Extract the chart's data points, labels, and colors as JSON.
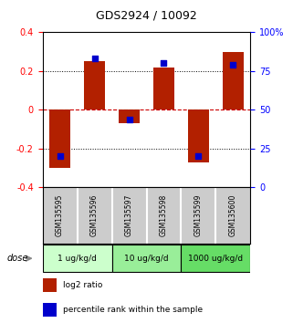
{
  "title": "GDS2924 / 10092",
  "samples": [
    "GSM135595",
    "GSM135596",
    "GSM135597",
    "GSM135598",
    "GSM135599",
    "GSM135600"
  ],
  "log2_ratio": [
    -0.3,
    0.25,
    -0.07,
    0.22,
    -0.27,
    0.3
  ],
  "percentile": [
    20,
    83,
    44,
    80,
    20,
    79
  ],
  "bar_color": "#b22000",
  "dot_color": "#0000cc",
  "ylim_left": [
    -0.4,
    0.4
  ],
  "ylim_right": [
    0,
    100
  ],
  "yticks_left": [
    -0.4,
    -0.2,
    0.0,
    0.2,
    0.4
  ],
  "yticks_right": [
    0,
    25,
    50,
    75,
    100
  ],
  "ytick_labels_right": [
    "0",
    "25",
    "50",
    "75",
    "100%"
  ],
  "ytick_labels_left": [
    "-0.4",
    "-0.2",
    "0",
    "0.2",
    "0.4"
  ],
  "dose_groups": [
    {
      "label": "1 ug/kg/d",
      "samples": [
        0,
        1
      ],
      "color": "#ccffcc"
    },
    {
      "label": "10 ug/kg/d",
      "samples": [
        2,
        3
      ],
      "color": "#99ee99"
    },
    {
      "label": "1000 ug/kg/d",
      "samples": [
        4,
        5
      ],
      "color": "#66dd66"
    }
  ],
  "dose_label": "dose",
  "legend_bar_label": "log2 ratio",
  "legend_dot_label": "percentile rank within the sample",
  "background_color": "#ffffff",
  "plot_bg_color": "#ffffff",
  "zero_line_color": "#cc0000",
  "sample_bg_color": "#cccccc",
  "bar_width": 0.6
}
